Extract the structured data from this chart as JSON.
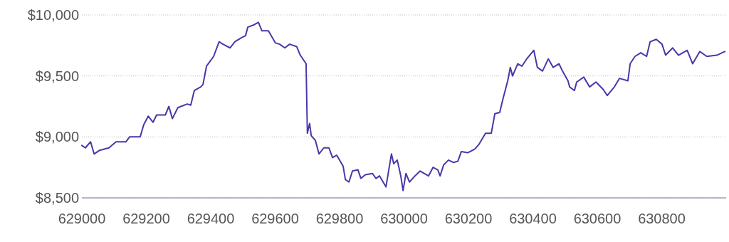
{
  "chart_data": {
    "type": "line",
    "x": [
      629000,
      629011,
      629027,
      629038,
      629055,
      629084,
      629106,
      629137,
      629148,
      629181,
      629192,
      629206,
      629221,
      629232,
      629259,
      629270,
      629281,
      629298,
      629327,
      629338,
      629349,
      629369,
      629376,
      629387,
      629409,
      629426,
      629438,
      629460,
      629475,
      629493,
      629508,
      629515,
      629535,
      629548,
      629559,
      629579,
      629601,
      629614,
      629630,
      629645,
      629667,
      629678,
      629696,
      629700,
      629707,
      629712,
      629725,
      629736,
      629751,
      629767,
      629778,
      629791,
      629811,
      629818,
      629829,
      629840,
      629857,
      629866,
      629880,
      629902,
      629913,
      629924,
      629944,
      629961,
      629968,
      629979,
      629990,
      629997,
      630006,
      630017,
      630034,
      630050,
      630076,
      630090,
      630105,
      630112,
      630123,
      630138,
      630154,
      630167,
      630178,
      630198,
      630220,
      630233,
      630253,
      630271,
      630282,
      630297,
      630308,
      630322,
      630330,
      630337,
      630353,
      630366,
      630381,
      630403,
      630414,
      630430,
      630448,
      630463,
      630481,
      630492,
      630509,
      630514,
      630529,
      630536,
      630558,
      630576,
      630596,
      630618,
      630631,
      630653,
      630669,
      630695,
      630702,
      630717,
      630735,
      630753,
      630764,
      630783,
      630801,
      630812,
      630834,
      630852,
      630879,
      630896,
      630918,
      630940,
      630971,
      630996
    ],
    "series": [
      {
        "color": "#4a37a8",
        "values": [
          8930,
          8910,
          8960,
          8860,
          8890,
          8910,
          8960,
          8960,
          9000,
          9000,
          9100,
          9170,
          9120,
          9180,
          9180,
          9250,
          9150,
          9240,
          9270,
          9260,
          9380,
          9410,
          9430,
          9580,
          9660,
          9780,
          9760,
          9730,
          9780,
          9810,
          9830,
          9900,
          9920,
          9940,
          9870,
          9870,
          9770,
          9760,
          9730,
          9760,
          9740,
          9670,
          9600,
          9030,
          9110,
          9010,
          8970,
          8860,
          8910,
          8910,
          8830,
          8850,
          8760,
          8650,
          8630,
          8720,
          8730,
          8660,
          8690,
          8700,
          8660,
          8680,
          8590,
          8860,
          8780,
          8810,
          8680,
          8560,
          8700,
          8630,
          8680,
          8720,
          8680,
          8750,
          8730,
          8680,
          8770,
          8810,
          8790,
          8800,
          8880,
          8870,
          8900,
          8940,
          9030,
          9030,
          9190,
          9200,
          9320,
          9460,
          9570,
          9500,
          9600,
          9580,
          9640,
          9710,
          9570,
          9540,
          9640,
          9570,
          9600,
          9540,
          9460,
          9410,
          9380,
          9450,
          9490,
          9410,
          9450,
          9390,
          9340,
          9410,
          9480,
          9460,
          9600,
          9660,
          9690,
          9660,
          9780,
          9800,
          9760,
          9670,
          9730,
          9670,
          9710,
          9600,
          9700,
          9660,
          9670,
          9700
        ]
      }
    ],
    "xlim": [
      629000,
      631000
    ],
    "xticks": [
      629000,
      629200,
      629400,
      629600,
      629800,
      630000,
      630200,
      630400,
      630600,
      630800
    ],
    "ylim": [
      8500,
      10000
    ],
    "yticks": [
      {
        "value": 8500,
        "label": "$8,500"
      },
      {
        "value": 9000,
        "label": "$9,000"
      },
      {
        "value": 9500,
        "label": "$9,500"
      },
      {
        "value": 10000,
        "label": "$10,000"
      }
    ],
    "grid": "y"
  }
}
